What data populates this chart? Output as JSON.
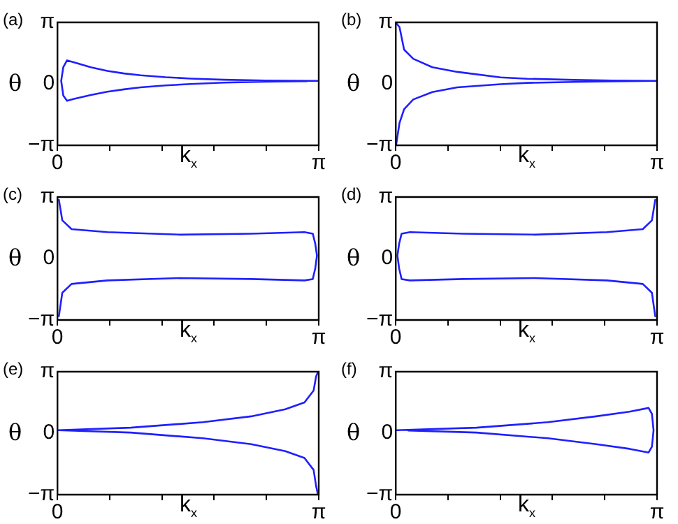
{
  "chart_data": [
    {
      "type": "line",
      "title": "(a)",
      "xlabel": "k$_{x}$",
      "ylabel": "θ",
      "xlim": [
        0,
        3.14159
      ],
      "ylim": [
        -3.14159,
        3.14159
      ],
      "xticks": [
        {
          "value": 0,
          "label": "0"
        },
        {
          "value": 0.6283,
          "label": null
        },
        {
          "value": 1.2566,
          "label": null
        },
        {
          "value": 1.885,
          "label": null
        },
        {
          "value": 2.5133,
          "label": null
        },
        {
          "value": 3.14159,
          "label": "π"
        }
      ],
      "yticks": [
        {
          "value": -3.14159,
          "label": "−π"
        },
        {
          "value": 0,
          "label": "0"
        },
        {
          "value": 3.14159,
          "label": "π"
        }
      ],
      "grid": false,
      "legend": false,
      "marker": "none",
      "line_style": "solid",
      "series": [
        {
          "color": "#1f1fff",
          "x": [
            3.14,
            2.5,
            2.0,
            1.6,
            1.3,
            1.0,
            0.8,
            0.6,
            0.4,
            0.2,
            0.115,
            0.07,
            0.05,
            0.045,
            0.05,
            0.07,
            0.115,
            0.2,
            0.4,
            0.6,
            0.8,
            1.0,
            1.3,
            1.6,
            2.0,
            2.5,
            3.0
          ],
          "values": [
            0.15,
            0.17,
            0.21,
            0.27,
            0.34,
            0.44,
            0.53,
            0.66,
            0.85,
            1.1,
            1.2,
            0.85,
            0.3,
            0.15,
            0.0,
            -0.6,
            -0.87,
            -0.77,
            -0.57,
            -0.4,
            -0.28,
            -0.18,
            -0.08,
            -0.01,
            0.06,
            0.11,
            0.14
          ]
        }
      ]
    },
    {
      "type": "line",
      "title": "(b)",
      "xlabel": "k$_{x}$",
      "ylabel": "θ",
      "xlim": [
        0,
        3.14159
      ],
      "ylim": [
        -3.14159,
        3.14159
      ],
      "xticks": [
        {
          "value": 0,
          "label": "0"
        },
        {
          "value": 0.6283,
          "label": null
        },
        {
          "value": 1.2566,
          "label": null
        },
        {
          "value": 1.885,
          "label": null
        },
        {
          "value": 2.5133,
          "label": null
        },
        {
          "value": 3.14159,
          "label": "π"
        }
      ],
      "yticks": [
        {
          "value": -3.14159,
          "label": "−π"
        },
        {
          "value": 0,
          "label": "0"
        },
        {
          "value": 3.14159,
          "label": "π"
        }
      ],
      "grid": false,
      "legend": false,
      "marker": "none",
      "line_style": "solid",
      "series": [
        {
          "color": "#1f1fff",
          "x": [
            0.005,
            0.045,
            0.1,
            0.21,
            0.44,
            0.74,
            1.26,
            1.58,
            2.15,
            2.6,
            3.14,
            2.6,
            2.15,
            1.58,
            1.26,
            0.74,
            0.44,
            0.21,
            0.1,
            0.045,
            0.005
          ],
          "values": [
            3.1,
            2.9,
            1.75,
            1.28,
            0.85,
            0.61,
            0.33,
            0.26,
            0.2,
            0.17,
            0.15,
            0.13,
            0.1,
            0.05,
            -0.02,
            -0.18,
            -0.42,
            -0.8,
            -1.3,
            -2.0,
            -3.1
          ]
        }
      ]
    },
    {
      "type": "line",
      "title": "(c)",
      "xlabel": "k$_{x}$",
      "ylabel": "θ",
      "xlim": [
        0,
        3.14159
      ],
      "ylim": [
        -3.14159,
        3.14159
      ],
      "xticks": [
        {
          "value": 0,
          "label": "0"
        },
        {
          "value": 0.6283,
          "label": null
        },
        {
          "value": 1.2566,
          "label": null
        },
        {
          "value": 1.885,
          "label": null
        },
        {
          "value": 2.5133,
          "label": null
        },
        {
          "value": 3.14159,
          "label": "π"
        }
      ],
      "yticks": [
        {
          "value": -3.14159,
          "label": "−π"
        },
        {
          "value": 0,
          "label": "0"
        },
        {
          "value": 3.14159,
          "label": "π"
        }
      ],
      "grid": false,
      "legend": false,
      "marker": "none",
      "line_style": "solid",
      "series": [
        {
          "color": "#1f1fff",
          "x": [
            0.017,
            0.058,
            0.17,
            0.6,
            1.47,
            2.33,
            2.97,
            3.07,
            3.1,
            3.12,
            3.1,
            3.07,
            2.97,
            2.33,
            1.47,
            0.6,
            0.17,
            0.058,
            0.017
          ],
          "values": [
            3.0,
            1.95,
            1.5,
            1.35,
            1.22,
            1.27,
            1.35,
            1.27,
            0.75,
            0.15,
            -0.5,
            -1.05,
            -1.12,
            -1.05,
            -1.0,
            -1.12,
            -1.3,
            -1.75,
            -2.95
          ]
        }
      ]
    },
    {
      "type": "line",
      "title": "(d)",
      "xlabel": "k$_{x}$",
      "ylabel": "θ",
      "xlim": [
        0,
        3.14159
      ],
      "ylim": [
        -3.14159,
        3.14159
      ],
      "xticks": [
        {
          "value": 0,
          "label": "0"
        },
        {
          "value": 0.6283,
          "label": null
        },
        {
          "value": 1.2566,
          "label": null
        },
        {
          "value": 1.885,
          "label": null
        },
        {
          "value": 2.5133,
          "label": null
        },
        {
          "value": 3.14159,
          "label": "π"
        }
      ],
      "yticks": [
        {
          "value": -3.14159,
          "label": "−π"
        },
        {
          "value": 0,
          "label": "0"
        },
        {
          "value": 3.14159,
          "label": "π"
        }
      ],
      "grid": false,
      "legend": false,
      "marker": "none",
      "line_style": "solid",
      "series": [
        {
          "color": "#1f1fff",
          "x": [
            3.12,
            3.08,
            2.97,
            2.54,
            1.67,
            0.81,
            0.17,
            0.07,
            0.04,
            0.02,
            0.04,
            0.07,
            0.17,
            0.81,
            1.67,
            2.54,
            2.97,
            3.08,
            3.12
          ],
          "values": [
            3.0,
            1.95,
            1.5,
            1.35,
            1.22,
            1.27,
            1.35,
            1.27,
            0.75,
            0.15,
            -0.5,
            -1.05,
            -1.12,
            -1.05,
            -1.0,
            -1.12,
            -1.3,
            -1.75,
            -2.95
          ]
        }
      ]
    },
    {
      "type": "line",
      "title": "(e)",
      "xlabel": "k$_{x}$",
      "ylabel": "θ",
      "xlim": [
        0,
        3.14159
      ],
      "ylim": [
        -3.14159,
        3.14159
      ],
      "xticks": [
        {
          "value": 0,
          "label": "0"
        },
        {
          "value": 0.6283,
          "label": null
        },
        {
          "value": 1.2566,
          "label": null
        },
        {
          "value": 1.885,
          "label": null
        },
        {
          "value": 2.5133,
          "label": null
        },
        {
          "value": 3.14159,
          "label": "π"
        }
      ],
      "yticks": [
        {
          "value": -3.14159,
          "label": "−π"
        },
        {
          "value": 0,
          "label": "0"
        },
        {
          "value": 3.14159,
          "label": "π"
        }
      ],
      "grid": false,
      "legend": false,
      "marker": "none",
      "line_style": "solid",
      "series": [
        {
          "color": "#1f1fff",
          "x": [
            3.13,
            3.11,
            3.08,
            2.97,
            2.74,
            2.33,
            1.75,
            0.88,
            0.01,
            0.88,
            1.75,
            2.33,
            2.74,
            2.97,
            3.08,
            3.11,
            3.13
          ],
          "values": [
            3.1,
            2.9,
            2.18,
            1.57,
            1.22,
            0.86,
            0.56,
            0.28,
            0.15,
            0.03,
            -0.26,
            -0.56,
            -0.92,
            -1.27,
            -1.88,
            -2.7,
            -3.1
          ]
        }
      ]
    },
    {
      "type": "line",
      "title": "(f)",
      "xlabel": "k$_{x}$",
      "ylabel": "θ",
      "xlim": [
        0,
        3.14159
      ],
      "ylim": [
        -3.14159,
        3.14159
      ],
      "xticks": [
        {
          "value": 0,
          "label": "0"
        },
        {
          "value": 0.6283,
          "label": null
        },
        {
          "value": 1.2566,
          "label": null
        },
        {
          "value": 1.885,
          "label": null
        },
        {
          "value": 2.5133,
          "label": null
        },
        {
          "value": 3.14159,
          "label": "π"
        }
      ],
      "yticks": [
        {
          "value": -3.14159,
          "label": "−π"
        },
        {
          "value": 0,
          "label": "0"
        },
        {
          "value": 3.14159,
          "label": "π"
        }
      ],
      "grid": false,
      "legend": false,
      "marker": "none",
      "line_style": "solid",
      "series": [
        {
          "color": "#1f1fff",
          "x": [
            0.01,
            0.97,
            1.83,
            2.41,
            2.81,
            3.04,
            3.08,
            3.1,
            3.08,
            3.04,
            2.81,
            2.41,
            1.83,
            0.97,
            0.15
          ],
          "values": [
            0.15,
            0.28,
            0.56,
            0.86,
            1.1,
            1.29,
            0.99,
            0.15,
            -0.69,
            -0.99,
            -0.8,
            -0.56,
            -0.26,
            0.03,
            0.14
          ]
        }
      ]
    }
  ]
}
